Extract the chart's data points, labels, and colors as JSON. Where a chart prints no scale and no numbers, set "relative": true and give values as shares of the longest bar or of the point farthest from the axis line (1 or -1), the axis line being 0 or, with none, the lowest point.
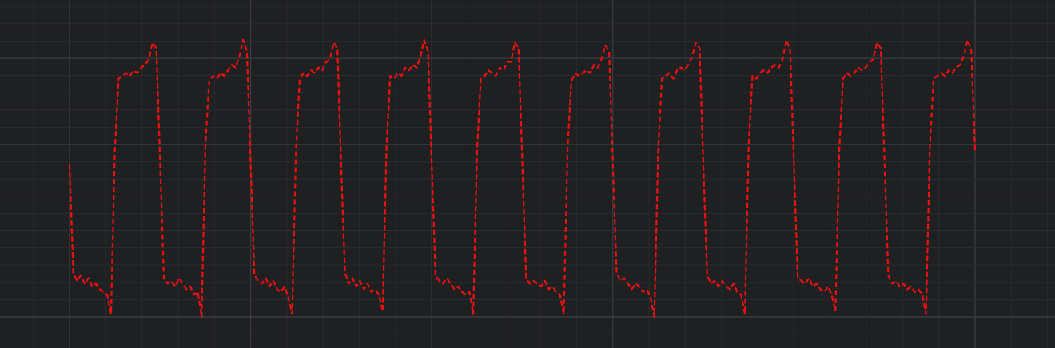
{
  "chart_data": {
    "type": "line",
    "relative": true,
    "grid": true,
    "legend": false,
    "marker": "none",
    "line_style": "dashed",
    "categories": [
      null,
      null,
      null,
      null,
      null,
      null,
      null,
      null,
      null,
      null,
      null,
      null,
      null,
      null,
      null,
      null,
      null,
      null,
      null,
      null,
      null,
      null,
      null,
      null,
      null,
      null,
      null,
      null,
      null,
      null,
      null,
      null,
      null,
      null,
      null,
      null,
      null,
      null,
      null,
      null,
      null,
      null,
      null,
      null,
      null,
      null,
      null,
      null,
      null,
      null,
      null,
      null,
      null,
      null,
      null,
      null,
      null,
      null,
      null,
      null,
      null,
      null,
      null,
      null,
      null,
      null,
      null,
      null,
      null,
      null,
      null,
      null,
      null,
      null,
      null,
      null,
      null,
      null,
      null,
      null,
      null,
      null,
      null,
      null,
      null,
      null,
      null,
      null,
      null,
      null,
      null,
      null,
      null,
      null,
      null,
      null,
      null,
      null,
      null,
      null,
      null,
      null,
      null,
      null,
      null,
      null,
      null,
      null,
      null,
      null,
      null,
      null,
      null,
      null,
      null,
      null,
      null,
      null,
      null,
      null,
      null,
      null,
      null,
      null,
      null,
      null,
      null,
      null,
      null,
      null,
      null,
      null,
      null,
      null,
      null,
      null,
      null,
      null,
      null,
      null,
      null,
      null,
      null,
      null,
      null,
      null,
      null,
      null,
      null,
      null,
      null,
      null,
      null,
      null,
      null,
      null,
      null,
      null,
      null,
      null,
      null,
      null,
      null,
      null,
      null,
      null,
      null,
      null,
      null,
      null,
      null,
      null,
      null,
      null,
      null,
      null,
      null,
      null,
      null,
      null,
      null,
      null,
      null,
      null,
      null,
      null,
      null,
      null,
      null,
      null,
      null,
      null,
      null,
      null,
      null,
      null,
      null,
      null,
      null,
      null,
      null,
      null,
      null,
      null,
      null,
      null,
      null,
      null,
      null,
      null,
      null,
      null,
      null,
      null,
      null,
      null,
      null,
      null,
      null,
      null,
      null,
      null,
      null,
      null,
      null,
      null,
      null,
      null,
      null,
      null,
      null,
      null,
      null,
      null,
      null,
      null,
      null,
      null,
      null,
      null,
      null
    ],
    "series": [
      {
        "color": "#f01010",
        "values": [
          0.55,
          0.16,
          0.13,
          0.15,
          0.12,
          0.14,
          0.11,
          0.12,
          0.1,
          0.09,
          0.08,
          0.01,
          0.6,
          0.86,
          0.87,
          0.88,
          0.87,
          0.89,
          0.88,
          0.9,
          0.91,
          0.93,
          0.99,
          0.97,
          0.56,
          0.14,
          0.12,
          0.13,
          0.11,
          0.14,
          0.12,
          0.1,
          0.11,
          0.08,
          0.09,
          0.0,
          0.62,
          0.85,
          0.87,
          0.86,
          0.88,
          0.87,
          0.89,
          0.91,
          0.9,
          0.94,
          1.0,
          0.96,
          0.55,
          0.15,
          0.13,
          0.12,
          0.14,
          0.11,
          0.13,
          0.1,
          0.09,
          0.11,
          0.07,
          0.01,
          0.6,
          0.86,
          0.88,
          0.87,
          0.89,
          0.88,
          0.9,
          0.89,
          0.92,
          0.93,
          0.99,
          0.97,
          0.54,
          0.16,
          0.12,
          0.14,
          0.11,
          0.13,
          0.1,
          0.12,
          0.09,
          0.1,
          0.08,
          0.02,
          0.61,
          0.87,
          0.86,
          0.88,
          0.87,
          0.9,
          0.89,
          0.91,
          0.9,
          0.94,
          1.0,
          0.96,
          0.55,
          0.15,
          0.13,
          0.12,
          0.14,
          0.12,
          0.1,
          0.11,
          0.09,
          0.08,
          0.09,
          0.01,
          0.6,
          0.86,
          0.87,
          0.89,
          0.88,
          0.87,
          0.9,
          0.89,
          0.92,
          0.92,
          0.99,
          0.97,
          0.56,
          0.14,
          0.12,
          0.13,
          0.12,
          0.11,
          0.13,
          0.1,
          0.11,
          0.09,
          0.08,
          0.01,
          0.61,
          0.85,
          0.88,
          0.87,
          0.88,
          0.89,
          0.88,
          0.91,
          0.9,
          0.93,
          0.98,
          0.96,
          0.55,
          0.16,
          0.13,
          0.14,
          0.12,
          0.1,
          0.12,
          0.11,
          0.09,
          0.1,
          0.07,
          0.0,
          0.6,
          0.86,
          0.87,
          0.88,
          0.86,
          0.89,
          0.9,
          0.89,
          0.91,
          0.94,
          0.99,
          0.97,
          0.54,
          0.15,
          0.12,
          0.13,
          0.11,
          0.13,
          0.11,
          0.1,
          0.12,
          0.09,
          0.08,
          0.01,
          0.62,
          0.87,
          0.86,
          0.88,
          0.89,
          0.88,
          0.9,
          0.91,
          0.9,
          0.93,
          1.0,
          0.96,
          0.55,
          0.14,
          0.13,
          0.12,
          0.14,
          0.11,
          0.12,
          0.1,
          0.09,
          0.11,
          0.08,
          0.02,
          0.6,
          0.86,
          0.88,
          0.87,
          0.88,
          0.9,
          0.89,
          0.9,
          0.92,
          0.93,
          0.99,
          0.97,
          0.56,
          0.15,
          0.12,
          0.13,
          0.11,
          0.12,
          0.1,
          0.11,
          0.09,
          0.1,
          0.08,
          0.01,
          0.61,
          0.86,
          0.87,
          0.88,
          0.87,
          0.89,
          0.88,
          0.9,
          0.91,
          0.94,
          1.0,
          0.96,
          0.6
        ]
      }
    ]
  }
}
